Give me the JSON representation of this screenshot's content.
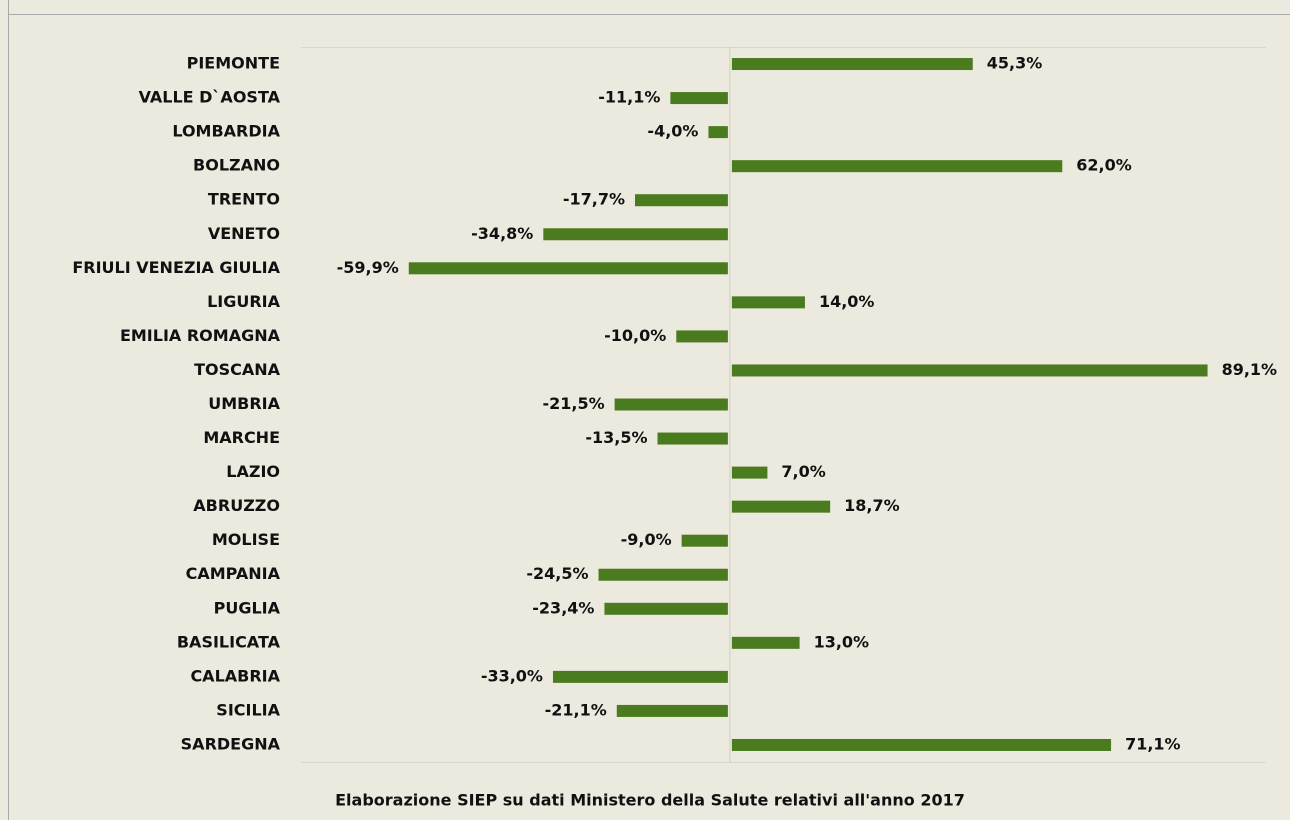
{
  "chart_data": {
    "type": "bar",
    "orientation": "horizontal",
    "categories": [
      "PIEMONTE",
      "VALLE D`AOSTA",
      "LOMBARDIA",
      "BOLZANO",
      "TRENTO",
      "VENETO",
      "FRIULI VENEZIA GIULIA",
      "LIGURIA",
      "EMILIA ROMAGNA",
      "TOSCANA",
      "UMBRIA",
      "MARCHE",
      "LAZIO",
      "ABRUZZO",
      "MOLISE",
      "CAMPANIA",
      "PUGLIA",
      "BASILICATA",
      "CALABRIA",
      "SICILIA",
      "SARDEGNA"
    ],
    "values": [
      45.3,
      -11.1,
      -4.0,
      62.0,
      -17.7,
      -34.8,
      -59.9,
      14.0,
      -10.0,
      89.1,
      -21.5,
      -13.5,
      7.0,
      18.7,
      -9.0,
      -24.5,
      -23.4,
      13.0,
      -33.0,
      -21.1,
      71.1
    ],
    "value_labels": [
      "45,3%",
      "-11,1%",
      "-4,0%",
      "62,0%",
      "-17,7%",
      "-34,8%",
      "-59,9%",
      "14,0%",
      "-10,0%",
      "89,1%",
      "-21,5%",
      "-13,5%",
      "7,0%",
      "18,7%",
      "-9,0%",
      "-24,5%",
      "-23,4%",
      "13,0%",
      "-33,0%",
      "-21,1%",
      "71,1%"
    ],
    "color": "#4a7b1f",
    "xlim": [
      -80,
      100
    ],
    "caption": "Elaborazione SIEP su dati Ministero della Salute relativi all'anno 2017"
  }
}
